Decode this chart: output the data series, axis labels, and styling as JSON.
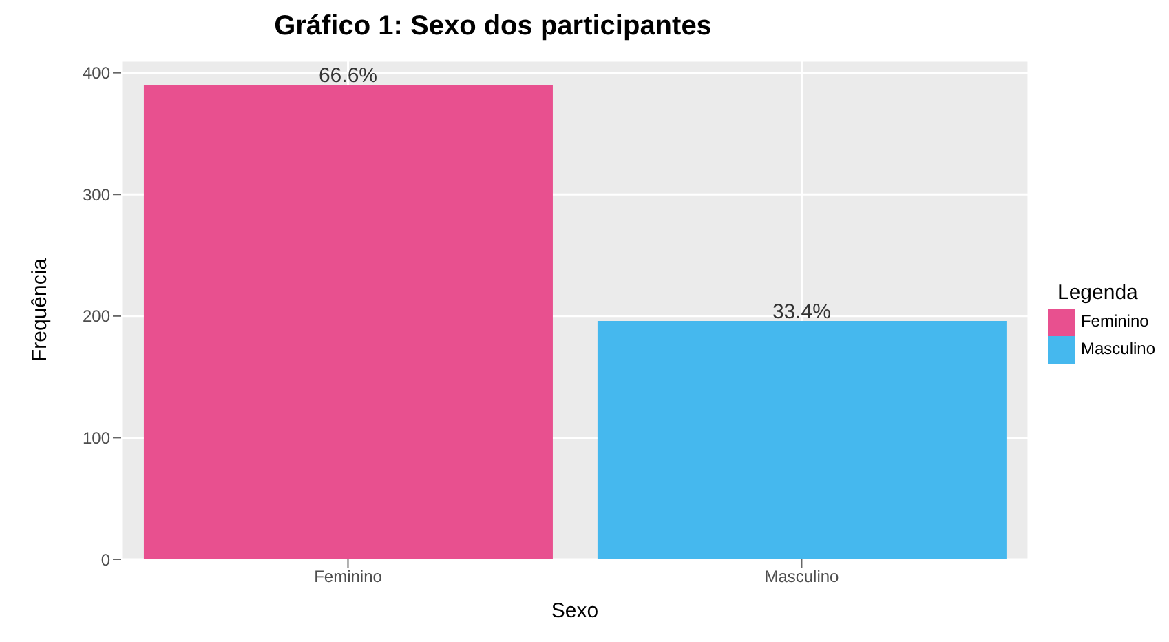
{
  "chart_data": {
    "type": "bar",
    "title": "Gráfico 1: Sexo dos participantes",
    "xlabel": "Sexo",
    "ylabel": "Frequência",
    "legend_title": "Legenda",
    "categories": [
      "Feminino",
      "Masculino"
    ],
    "series": [
      {
        "name": "Feminino",
        "color": "#e8508f",
        "values": [
          390,
          null
        ]
      },
      {
        "name": "Masculino",
        "color": "#45b8ee",
        "values": [
          null,
          196
        ]
      }
    ],
    "stacked": true,
    "annotations": [
      {
        "text": "66.6%",
        "x": "Feminino",
        "y": 390
      },
      {
        "text": "33.4%",
        "x": "Masculino",
        "y": 196
      }
    ],
    "ylim": [
      0,
      410
    ],
    "yticks": [
      0,
      100,
      200,
      300,
      400
    ],
    "grid": true,
    "legend": "right"
  }
}
